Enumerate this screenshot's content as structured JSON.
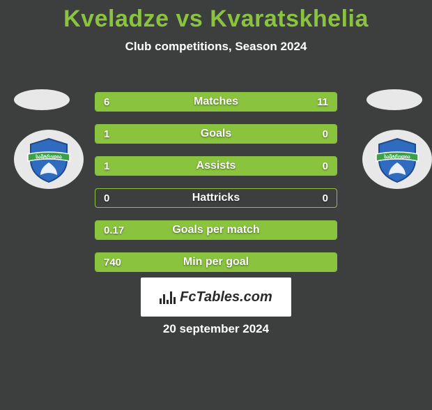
{
  "title": "Kveladze vs Kvaratskhelia",
  "subtitle": "Club competitions, Season 2024",
  "date": "20 september 2024",
  "logo_text": "FcTables.com",
  "colors": {
    "accent": "#8ac33e",
    "background": "#3d3f3e",
    "text": "#ffffff",
    "logo_bg": "#ffffff",
    "logo_fg": "#2a2a2a",
    "avatar_bg": "#e8e8e8"
  },
  "badge": {
    "shield_fill": "#2f6cc0",
    "shield_stroke": "#1e4a8a",
    "banner_fill": "#3aa04a",
    "banner_stroke": "#ffffff",
    "banner_text": "სამტრედია"
  },
  "stats": [
    {
      "label": "Matches",
      "left_val": "6",
      "right_val": "11",
      "left_pct": 35.3,
      "right_pct": 64.7
    },
    {
      "label": "Goals",
      "left_val": "1",
      "right_val": "0",
      "left_pct": 100,
      "right_pct": 0
    },
    {
      "label": "Assists",
      "left_val": "1",
      "right_val": "0",
      "left_pct": 100,
      "right_pct": 0
    },
    {
      "label": "Hattricks",
      "left_val": "0",
      "right_val": "0",
      "left_pct": 0,
      "right_pct": 0
    },
    {
      "label": "Goals per match",
      "left_val": "0.17",
      "right_val": "",
      "left_pct": 100,
      "right_pct": 0
    },
    {
      "label": "Min per goal",
      "left_val": "740",
      "right_val": "",
      "left_pct": 100,
      "right_pct": 0
    }
  ]
}
